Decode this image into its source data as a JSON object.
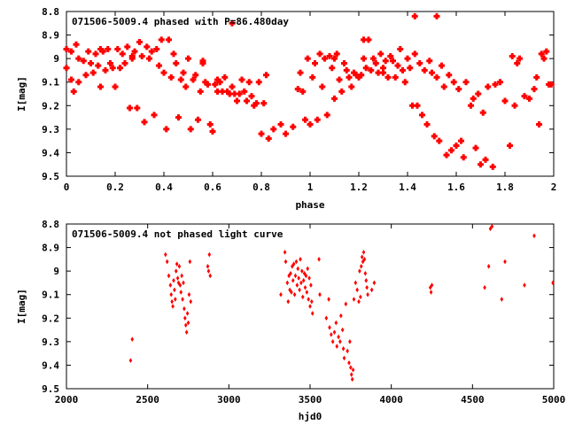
{
  "chart_data": [
    {
      "type": "scatter",
      "title": "071506-5009.4 phased with P=86.480day",
      "xlabel": "phase",
      "ylabel": "I[mag]",
      "xlim": [
        0,
        2
      ],
      "ylim": [
        8.8,
        9.5
      ],
      "y_inverted": true,
      "grid": false,
      "marker": "filled square",
      "color": "#ff0000",
      "x_ticks": [
        "0",
        "0.2",
        "0.4",
        "0.6",
        "0.8",
        "1",
        "1.2",
        "1.4",
        "1.6",
        "1.8",
        "2"
      ],
      "y_ticks": [
        "8.8",
        "8.9",
        "9",
        "9.1",
        "9.2",
        "9.3",
        "9.4",
        "9.5"
      ],
      "points": [
        [
          0.0,
          8.96
        ],
        [
          0.0,
          9.04
        ],
        [
          0.02,
          8.97
        ],
        [
          0.02,
          9.09
        ],
        [
          0.03,
          9.14
        ],
        [
          0.04,
          8.94
        ],
        [
          0.05,
          9.0
        ],
        [
          0.07,
          9.01
        ],
        [
          0.08,
          9.07
        ],
        [
          0.09,
          8.97
        ],
        [
          0.1,
          9.02
        ],
        [
          0.11,
          9.06
        ],
        [
          0.12,
          8.98
        ],
        [
          0.13,
          9.03
        ],
        [
          0.14,
          9.12
        ],
        [
          0.15,
          8.97
        ],
        [
          0.16,
          9.05
        ],
        [
          0.17,
          8.96
        ],
        [
          0.18,
          9.02
        ],
        [
          0.19,
          9.04
        ],
        [
          0.2,
          9.12
        ],
        [
          0.21,
          8.96
        ],
        [
          0.22,
          9.04
        ],
        [
          0.23,
          8.98
        ],
        [
          0.24,
          9.02
        ],
        [
          0.25,
          8.95
        ],
        [
          0.26,
          9.21
        ],
        [
          0.27,
          9.0
        ],
        [
          0.28,
          8.97
        ],
        [
          0.29,
          9.21
        ],
        [
          0.3,
          8.93
        ],
        [
          0.31,
          8.99
        ],
        [
          0.32,
          9.27
        ],
        [
          0.33,
          8.95
        ],
        [
          0.34,
          9.0
        ],
        [
          0.35,
          8.97
        ],
        [
          0.36,
          9.24
        ],
        [
          0.37,
          8.96
        ],
        [
          0.38,
          9.03
        ],
        [
          0.39,
          8.92
        ],
        [
          0.4,
          9.06
        ],
        [
          0.41,
          9.3
        ],
        [
          0.42,
          8.92
        ],
        [
          0.43,
          9.08
        ],
        [
          0.44,
          8.98
        ],
        [
          0.45,
          9.02
        ],
        [
          0.46,
          9.25
        ],
        [
          0.47,
          9.09
        ],
        [
          0.48,
          9.06
        ],
        [
          0.49,
          9.12
        ],
        [
          0.5,
          9.0
        ],
        [
          0.51,
          9.3
        ],
        [
          0.52,
          9.09
        ],
        [
          0.53,
          9.07
        ],
        [
          0.54,
          9.26
        ],
        [
          0.55,
          9.14
        ],
        [
          0.56,
          9.02
        ],
        [
          0.57,
          9.1
        ],
        [
          0.58,
          9.11
        ],
        [
          0.59,
          9.28
        ],
        [
          0.6,
          9.31
        ],
        [
          0.61,
          9.11
        ],
        [
          0.62,
          9.09
        ],
        [
          0.63,
          9.1
        ],
        [
          0.64,
          9.14
        ],
        [
          0.65,
          9.08
        ],
        [
          0.66,
          9.14
        ],
        [
          0.67,
          9.15
        ],
        [
          0.68,
          9.12
        ],
        [
          0.69,
          9.15
        ],
        [
          0.7,
          9.18
        ],
        [
          0.71,
          9.15
        ],
        [
          0.72,
          9.09
        ],
        [
          0.73,
          9.14
        ],
        [
          0.74,
          9.18
        ],
        [
          0.75,
          9.1
        ],
        [
          0.76,
          9.16
        ],
        [
          0.77,
          9.2
        ],
        [
          0.78,
          9.19
        ],
        [
          0.79,
          9.1
        ],
        [
          0.8,
          9.32
        ],
        [
          0.81,
          9.19
        ],
        [
          0.82,
          9.07
        ],
        [
          0.83,
          9.34
        ],
        [
          0.85,
          9.3
        ],
        [
          0.88,
          9.28
        ],
        [
          0.9,
          9.32
        ],
        [
          0.93,
          9.29
        ],
        [
          0.95,
          9.13
        ],
        [
          0.96,
          9.06
        ],
        [
          0.97,
          9.14
        ],
        [
          0.98,
          9.26
        ],
        [
          0.99,
          9.0
        ],
        [
          1.0,
          9.28
        ],
        [
          1.01,
          9.08
        ],
        [
          1.02,
          9.02
        ],
        [
          1.03,
          9.26
        ],
        [
          1.04,
          8.98
        ],
        [
          1.05,
          9.12
        ],
        [
          1.06,
          9.0
        ],
        [
          1.07,
          9.24
        ],
        [
          1.08,
          8.99
        ],
        [
          1.09,
          9.04
        ],
        [
          1.1,
          9.17
        ],
        [
          1.11,
          8.98
        ],
        [
          1.12,
          9.09
        ],
        [
          1.13,
          9.14
        ],
        [
          1.14,
          9.02
        ],
        [
          1.15,
          9.05
        ],
        [
          1.16,
          9.08
        ],
        [
          1.17,
          9.12
        ],
        [
          1.18,
          9.06
        ],
        [
          1.19,
          9.07
        ],
        [
          1.2,
          9.08
        ],
        [
          1.21,
          9.07
        ],
        [
          1.22,
          9.0
        ],
        [
          1.23,
          9.04
        ],
        [
          1.24,
          8.92
        ],
        [
          1.25,
          9.05
        ],
        [
          1.26,
          9.0
        ],
        [
          1.27,
          9.02
        ],
        [
          1.28,
          9.06
        ],
        [
          1.29,
          8.98
        ],
        [
          1.3,
          9.04
        ],
        [
          1.31,
          9.01
        ],
        [
          1.32,
          9.08
        ],
        [
          1.33,
          8.99
        ],
        [
          1.34,
          9.01
        ],
        [
          1.35,
          9.08
        ],
        [
          1.36,
          9.03
        ],
        [
          1.37,
          8.96
        ],
        [
          1.38,
          9.05
        ],
        [
          1.39,
          9.1
        ],
        [
          1.4,
          9.0
        ],
        [
          1.41,
          9.04
        ],
        [
          1.42,
          9.2
        ],
        [
          1.43,
          8.98
        ],
        [
          1.44,
          9.2
        ],
        [
          1.45,
          9.02
        ],
        [
          1.46,
          9.24
        ],
        [
          1.47,
          9.05
        ],
        [
          1.48,
          9.28
        ],
        [
          1.49,
          9.01
        ],
        [
          1.5,
          9.06
        ],
        [
          1.51,
          9.33
        ],
        [
          1.52,
          9.08
        ],
        [
          1.53,
          9.35
        ],
        [
          1.54,
          9.03
        ],
        [
          1.55,
          9.12
        ],
        [
          1.56,
          9.41
        ],
        [
          1.57,
          9.07
        ],
        [
          1.58,
          9.39
        ],
        [
          1.59,
          9.1
        ],
        [
          1.6,
          9.37
        ],
        [
          1.61,
          9.13
        ],
        [
          1.62,
          9.35
        ],
        [
          1.63,
          9.42
        ],
        [
          1.64,
          9.1
        ],
        [
          1.66,
          9.2
        ],
        [
          1.67,
          9.17
        ],
        [
          1.68,
          9.38
        ],
        [
          1.69,
          9.15
        ],
        [
          1.7,
          9.45
        ],
        [
          1.71,
          9.23
        ],
        [
          1.72,
          9.43
        ],
        [
          1.73,
          9.12
        ],
        [
          1.75,
          9.46
        ],
        [
          1.78,
          9.1
        ],
        [
          1.8,
          9.18
        ],
        [
          1.82,
          9.37
        ],
        [
          1.83,
          8.99
        ],
        [
          1.84,
          9.2
        ],
        [
          1.85,
          9.02
        ],
        [
          1.86,
          9.0
        ],
        [
          1.88,
          9.16
        ],
        [
          1.9,
          9.17
        ],
        [
          1.92,
          9.13
        ],
        [
          1.93,
          9.08
        ],
        [
          1.94,
          9.28
        ],
        [
          1.95,
          8.98
        ],
        [
          1.96,
          9.0
        ],
        [
          1.97,
          8.97
        ],
        [
          1.98,
          9.11
        ],
        [
          1.99,
          9.11
        ],
        [
          1.1,
          9.0
        ],
        [
          0.62,
          9.14
        ],
        [
          0.14,
          8.96
        ],
        [
          1.52,
          8.82
        ],
        [
          0.68,
          8.85
        ],
        [
          1.43,
          8.82
        ],
        [
          1.22,
          8.92
        ],
        [
          0.27,
          8.99
        ],
        [
          1.3,
          9.06
        ],
        [
          0.56,
          9.01
        ],
        [
          1.76,
          9.11
        ],
        [
          0.05,
          9.1
        ]
      ]
    },
    {
      "type": "scatter",
      "title": "071506-5009.4 not phased light curve",
      "xlabel": "hjd0",
      "ylabel": "I[mag]",
      "xlim": [
        2000,
        5000
      ],
      "ylim": [
        8.8,
        9.5
      ],
      "y_inverted": true,
      "grid": false,
      "marker": "small diamond",
      "color": "#ff0000",
      "x_ticks": [
        "2000",
        "2500",
        "3000",
        "3500",
        "4000",
        "4500",
        "5000"
      ],
      "y_ticks": [
        "8.8",
        "8.9",
        "9",
        "9.1",
        "9.2",
        "9.3",
        "9.4",
        "9.5"
      ],
      "points": [
        [
          2395,
          9.38
        ],
        [
          2405,
          9.29
        ],
        [
          2610,
          8.93
        ],
        [
          2620,
          8.96
        ],
        [
          2630,
          9.02
        ],
        [
          2640,
          9.06
        ],
        [
          2645,
          9.1
        ],
        [
          2650,
          9.13
        ],
        [
          2655,
          9.15
        ],
        [
          2660,
          9.04
        ],
        [
          2665,
          9.08
        ],
        [
          2670,
          9.12
        ],
        [
          2675,
          9.0
        ],
        [
          2680,
          8.97
        ],
        [
          2685,
          9.03
        ],
        [
          2690,
          9.05
        ],
        [
          2695,
          8.98
        ],
        [
          2700,
          9.06
        ],
        [
          2705,
          9.09
        ],
        [
          2710,
          9.02
        ],
        [
          2715,
          9.12
        ],
        [
          2720,
          9.05
        ],
        [
          2725,
          9.16
        ],
        [
          2730,
          9.2
        ],
        [
          2735,
          9.23
        ],
        [
          2740,
          9.26
        ],
        [
          2745,
          9.18
        ],
        [
          2750,
          9.22
        ],
        [
          2755,
          9.1
        ],
        [
          2760,
          8.96
        ],
        [
          2765,
          9.13
        ],
        [
          2870,
          8.98
        ],
        [
          2875,
          9.0
        ],
        [
          2880,
          8.93
        ],
        [
          2885,
          9.02
        ],
        [
          3320,
          9.1
        ],
        [
          3345,
          8.92
        ],
        [
          3350,
          8.96
        ],
        [
          3360,
          9.05
        ],
        [
          3365,
          9.13
        ],
        [
          3370,
          9.02
        ],
        [
          3375,
          9.08
        ],
        [
          3380,
          9.01
        ],
        [
          3385,
          9.09
        ],
        [
          3390,
          8.98
        ],
        [
          3395,
          9.04
        ],
        [
          3400,
          8.97
        ],
        [
          3405,
          9.1
        ],
        [
          3410,
          9.02
        ],
        [
          3415,
          8.96
        ],
        [
          3420,
          9.06
        ],
        [
          3425,
          8.99
        ],
        [
          3430,
          9.03
        ],
        [
          3435,
          9.08
        ],
        [
          3440,
          8.95
        ],
        [
          3445,
          9.05
        ],
        [
          3450,
          9.0
        ],
        [
          3455,
          9.11
        ],
        [
          3460,
          9.04
        ],
        [
          3465,
          9.01
        ],
        [
          3470,
          9.07
        ],
        [
          3475,
          9.02
        ],
        [
          3480,
          9.09
        ],
        [
          3485,
          8.99
        ],
        [
          3490,
          9.12
        ],
        [
          3495,
          9.03
        ],
        [
          3500,
          9.15
        ],
        [
          3505,
          9.06
        ],
        [
          3510,
          9.13
        ],
        [
          3515,
          9.18
        ],
        [
          3555,
          8.95
        ],
        [
          3560,
          9.1
        ],
        [
          3600,
          9.2
        ],
        [
          3615,
          9.12
        ],
        [
          3620,
          9.24
        ],
        [
          3630,
          9.27
        ],
        [
          3640,
          9.3
        ],
        [
          3650,
          9.26
        ],
        [
          3660,
          9.22
        ],
        [
          3665,
          9.32
        ],
        [
          3675,
          9.28
        ],
        [
          3685,
          9.3
        ],
        [
          3690,
          9.19
        ],
        [
          3700,
          9.25
        ],
        [
          3705,
          9.33
        ],
        [
          3710,
          9.37
        ],
        [
          3720,
          9.14
        ],
        [
          3730,
          9.34
        ],
        [
          3740,
          9.39
        ],
        [
          3745,
          9.3
        ],
        [
          3750,
          9.41
        ],
        [
          3755,
          9.44
        ],
        [
          3760,
          9.46
        ],
        [
          3765,
          9.42
        ],
        [
          3770,
          9.12
        ],
        [
          3780,
          9.05
        ],
        [
          3790,
          9.08
        ],
        [
          3800,
          9.13
        ],
        [
          3805,
          9.0
        ],
        [
          3810,
          9.11
        ],
        [
          3815,
          8.98
        ],
        [
          3820,
          8.94
        ],
        [
          3825,
          8.96
        ],
        [
          3830,
          8.92
        ],
        [
          3835,
          8.95
        ],
        [
          3840,
          9.01
        ],
        [
          3845,
          9.04
        ],
        [
          3850,
          9.07
        ],
        [
          3855,
          9.1
        ],
        [
          3880,
          9.08
        ],
        [
          3895,
          9.05
        ],
        [
          4240,
          9.07
        ],
        [
          4245,
          9.09
        ],
        [
          4250,
          9.06
        ],
        [
          4575,
          9.07
        ],
        [
          4600,
          8.98
        ],
        [
          4610,
          8.82
        ],
        [
          4620,
          8.81
        ],
        [
          4680,
          9.12
        ],
        [
          4700,
          8.96
        ],
        [
          4820,
          9.06
        ],
        [
          4880,
          8.85
        ],
        [
          4995,
          9.05
        ]
      ]
    }
  ]
}
